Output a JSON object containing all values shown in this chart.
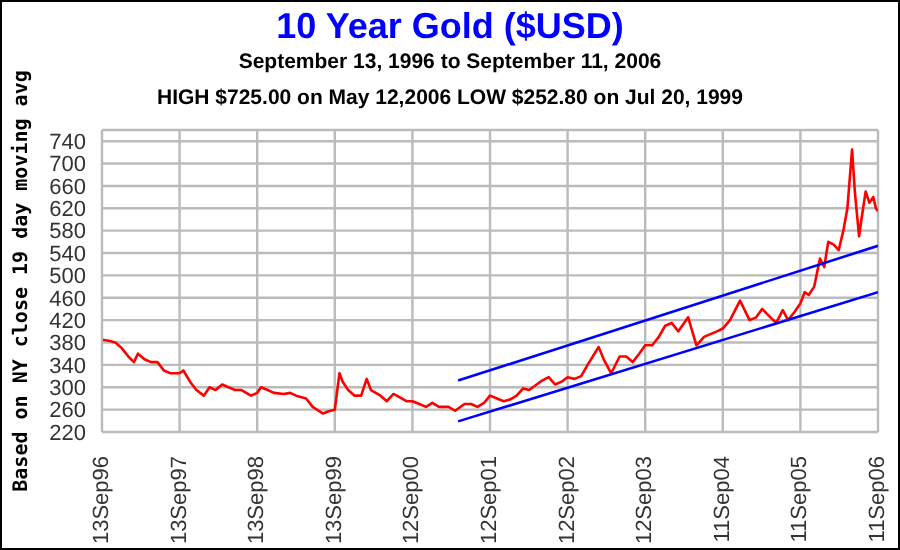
{
  "chart_data": {
    "type": "line",
    "title": "10 Year Gold ($USD)",
    "subtitle": "September 13, 1996 to September 11, 2006",
    "annotations": [
      "HIGH $725.00 on May 12,2006 LOW $252.80 on Jul 20, 1999"
    ],
    "ylabel": "Based on NY close 19 day moving avg",
    "xlim": [
      "1996-09-13",
      "2006-09-11"
    ],
    "xticks": [
      {
        "value": "1996-09-13",
        "label": "13Sep96"
      },
      {
        "value": "1997-09-13",
        "label": "13Sep97"
      },
      {
        "value": "1998-09-13",
        "label": "13Sep98"
      },
      {
        "value": "1999-09-13",
        "label": "13Sep99"
      },
      {
        "value": "2000-09-12",
        "label": "12Sep00"
      },
      {
        "value": "2001-09-12",
        "label": "12Sep01"
      },
      {
        "value": "2002-09-12",
        "label": "12Sep02"
      },
      {
        "value": "2003-09-12",
        "label": "12Sep03"
      },
      {
        "value": "2004-09-11",
        "label": "11Sep04"
      },
      {
        "value": "2005-09-11",
        "label": "11Sep05"
      },
      {
        "value": "2006-09-11",
        "label": "11Sep06"
      }
    ],
    "ylim": [
      220,
      760
    ],
    "yticks": [
      220,
      260,
      300,
      340,
      380,
      420,
      460,
      500,
      540,
      580,
      620,
      660,
      700,
      740
    ],
    "grid": true,
    "marker": "none",
    "line_style": "solid",
    "series": [
      {
        "color": "#ff0000",
        "x": [
          "1996-09-13",
          "1996-10-15",
          "1996-11-15",
          "1996-12-15",
          "1997-01-15",
          "1997-02-10",
          "1997-03-01",
          "1997-04-01",
          "1997-05-01",
          "1997-06-01",
          "1997-07-01",
          "1997-08-01",
          "1997-09-13",
          "1997-10-01",
          "1997-11-01",
          "1997-12-01",
          "1998-01-05",
          "1998-02-01",
          "1998-03-01",
          "1998-04-01",
          "1998-05-01",
          "1998-06-01",
          "1998-07-01",
          "1998-08-15",
          "1998-09-13",
          "1998-10-01",
          "1998-11-01",
          "1998-12-01",
          "1999-01-15",
          "1999-02-15",
          "1999-03-15",
          "1999-05-01",
          "1999-06-01",
          "1999-07-20",
          "1999-08-15",
          "1999-09-13",
          "1999-10-05",
          "1999-10-20",
          "1999-11-15",
          "1999-12-15",
          "2000-01-15",
          "2000-02-10",
          "2000-03-01",
          "2000-04-15",
          "2000-05-15",
          "2000-06-15",
          "2000-07-15",
          "2000-08-15",
          "2000-09-12",
          "2000-10-15",
          "2000-11-15",
          "2000-12-15",
          "2001-01-15",
          "2001-03-01",
          "2001-04-01",
          "2001-05-15",
          "2001-06-15",
          "2001-07-15",
          "2001-08-15",
          "2001-09-12",
          "2001-10-15",
          "2001-11-15",
          "2001-12-15",
          "2002-01-15",
          "2002-02-15",
          "2002-03-15",
          "2002-05-15",
          "2002-06-15",
          "2002-07-15",
          "2002-08-15",
          "2002-09-12",
          "2002-10-15",
          "2002-11-15",
          "2002-12-15",
          "2003-02-05",
          "2003-03-01",
          "2003-04-05",
          "2003-05-15",
          "2003-06-15",
          "2003-07-15",
          "2003-08-15",
          "2003-09-12",
          "2003-10-15",
          "2003-11-15",
          "2003-12-15",
          "2004-01-15",
          "2004-02-15",
          "2004-04-01",
          "2004-05-10",
          "2004-06-15",
          "2004-07-15",
          "2004-08-15",
          "2004-09-11",
          "2004-10-15",
          "2004-12-01",
          "2005-01-15",
          "2005-02-15",
          "2005-03-15",
          "2005-04-15",
          "2005-05-20",
          "2005-06-20",
          "2005-07-15",
          "2005-08-15",
          "2005-09-11",
          "2005-10-01",
          "2005-10-20",
          "2005-11-15",
          "2005-12-12",
          "2006-01-01",
          "2006-01-20",
          "2006-02-15",
          "2006-03-10",
          "2006-04-01",
          "2006-04-20",
          "2006-05-12",
          "2006-05-25",
          "2006-06-14",
          "2006-06-25",
          "2006-07-15",
          "2006-08-01",
          "2006-08-20",
          "2006-09-01",
          "2006-09-11"
        ],
        "values": [
          385,
          383,
          380,
          370,
          355,
          345,
          360,
          350,
          345,
          345,
          330,
          325,
          325,
          330,
          310,
          295,
          285,
          300,
          295,
          305,
          300,
          295,
          295,
          285,
          290,
          300,
          295,
          290,
          288,
          290,
          285,
          280,
          265,
          253,
          257,
          260,
          325,
          310,
          295,
          285,
          285,
          315,
          295,
          285,
          275,
          288,
          282,
          275,
          275,
          270,
          265,
          272,
          265,
          265,
          258,
          270,
          270,
          265,
          272,
          285,
          280,
          275,
          278,
          285,
          298,
          295,
          312,
          318,
          305,
          310,
          318,
          315,
          320,
          340,
          372,
          350,
          325,
          355,
          355,
          345,
          360,
          375,
          375,
          390,
          410,
          415,
          400,
          425,
          375,
          390,
          395,
          400,
          405,
          420,
          455,
          420,
          425,
          440,
          428,
          415,
          438,
          420,
          435,
          450,
          470,
          465,
          480,
          530,
          515,
          560,
          555,
          545,
          580,
          620,
          725,
          650,
          570,
          600,
          650,
          630,
          640,
          620,
          615
        ]
      },
      {
        "color": "#0000ff",
        "x": [
          "2001-04-15",
          "2006-09-11"
        ],
        "values": [
          312,
          553
        ]
      },
      {
        "color": "#0000ff",
        "x": [
          "2001-04-15",
          "2006-09-11"
        ],
        "values": [
          239,
          470
        ]
      }
    ]
  }
}
